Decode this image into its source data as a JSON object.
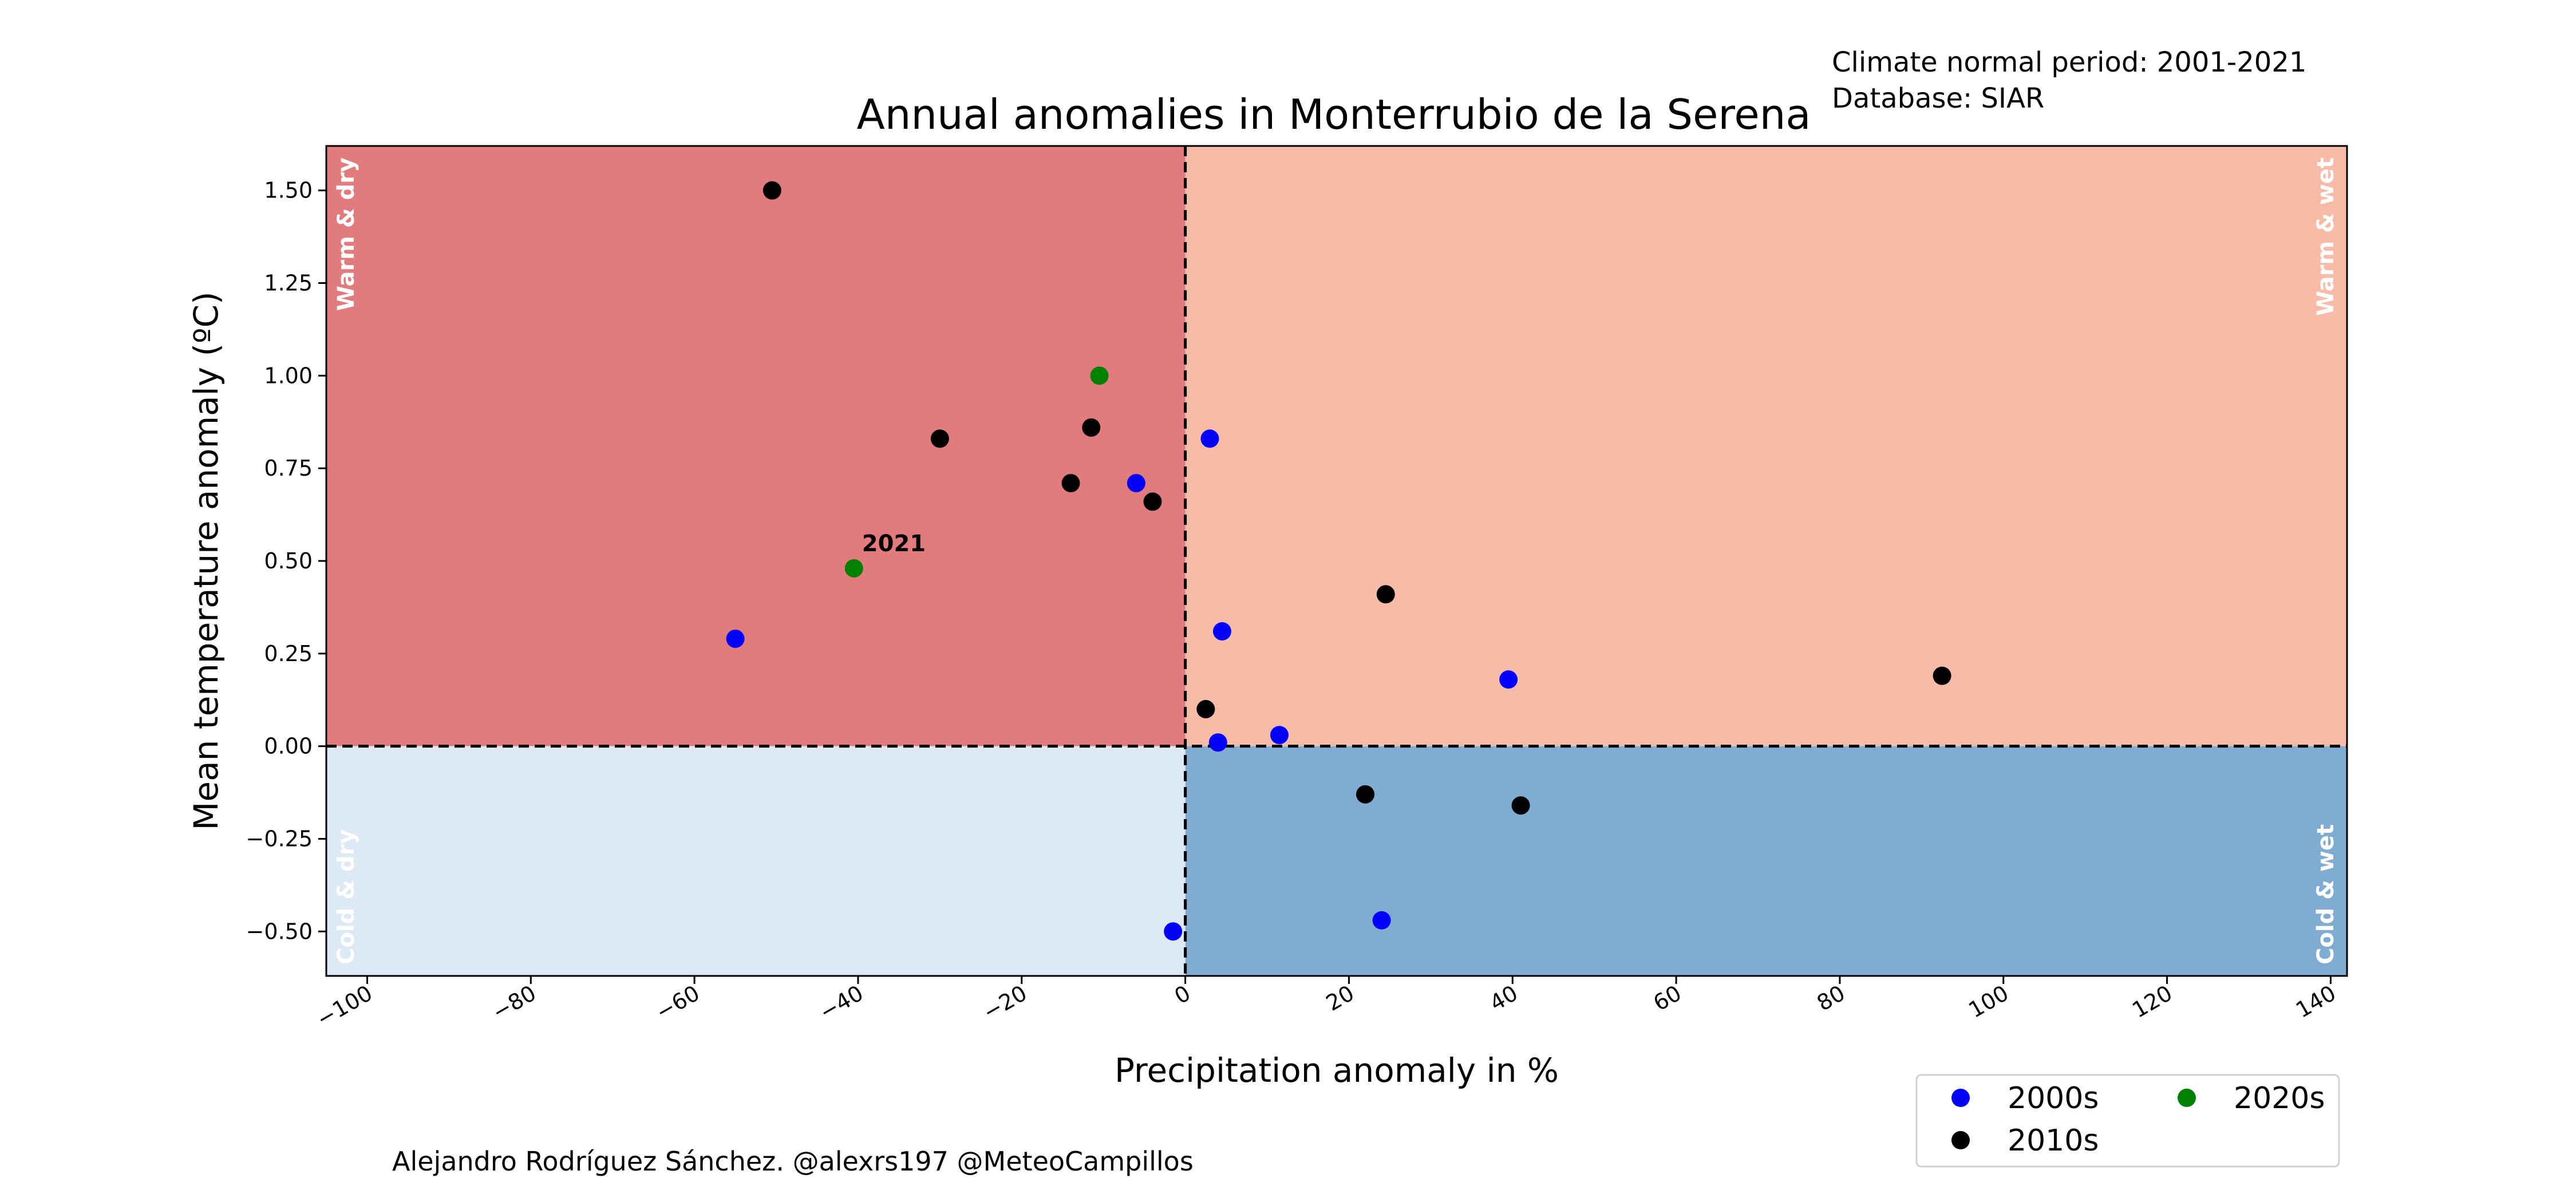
{
  "chart_data": {
    "type": "scatter",
    "title": "Annual anomalies in Monterrubio de la Serena",
    "note_lines": [
      "Climate normal period: 2001-2021",
      "Database: SIAR"
    ],
    "xlabel": "Precipitation anomaly in %",
    "ylabel": "Mean temperature anomaly (ºC)",
    "credit": "Alejandro Rodríguez Sánchez. @alexrs197 @MeteoCampillos",
    "xlim": [
      -105,
      142
    ],
    "ylim": [
      -0.62,
      1.62
    ],
    "x_ticks": [
      -100,
      -80,
      -60,
      -40,
      -20,
      0,
      20,
      40,
      60,
      80,
      100,
      120,
      140
    ],
    "x_tick_labels": [
      "−100",
      "−80",
      "−60",
      "−40",
      "−20",
      "0",
      "20",
      "40",
      "60",
      "80",
      "100",
      "120",
      "140"
    ],
    "y_ticks": [
      -0.5,
      -0.25,
      0.0,
      0.25,
      0.5,
      0.75,
      1.0,
      1.25,
      1.5
    ],
    "y_tick_labels": [
      "−0.50",
      "−0.25",
      "0.00",
      "0.25",
      "0.50",
      "0.75",
      "1.00",
      "1.25",
      "1.50"
    ],
    "quadrants": [
      {
        "label": "Warm & dry",
        "color": "#e27b7e"
      },
      {
        "label": "Warm & wet",
        "color": "#f7bba8"
      },
      {
        "label": "Cold & dry",
        "color": "#dde9f5"
      },
      {
        "label": "Cold & wet",
        "color": "#80acd4"
      }
    ],
    "series": [
      {
        "name": "2000s",
        "color": "#0000ff",
        "points": [
          [
            -55,
            0.29
          ],
          [
            -6,
            0.71
          ],
          [
            3,
            0.83
          ],
          [
            4.5,
            0.31
          ],
          [
            4,
            0.01
          ],
          [
            11.5,
            0.03
          ],
          [
            39.5,
            0.18
          ],
          [
            24,
            -0.47
          ],
          [
            -1.5,
            -0.5
          ]
        ]
      },
      {
        "name": "2010s",
        "color": "#000000",
        "points": [
          [
            -50.5,
            1.5
          ],
          [
            -30,
            0.83
          ],
          [
            -11.5,
            0.86
          ],
          [
            -14,
            0.71
          ],
          [
            -4,
            0.66
          ],
          [
            2.5,
            0.1
          ],
          [
            24.5,
            0.41
          ],
          [
            92.5,
            0.19
          ],
          [
            22,
            -0.13
          ],
          [
            41,
            -0.16
          ]
        ]
      },
      {
        "name": "2020s",
        "color": "#008000",
        "points": [
          [
            -10.5,
            1.0
          ],
          [
            -40.5,
            0.48
          ]
        ]
      }
    ],
    "annotations": [
      {
        "text": "2021",
        "x": -40.5,
        "y": 0.48
      }
    ],
    "legend_position": "bottom-right",
    "grid": false
  }
}
